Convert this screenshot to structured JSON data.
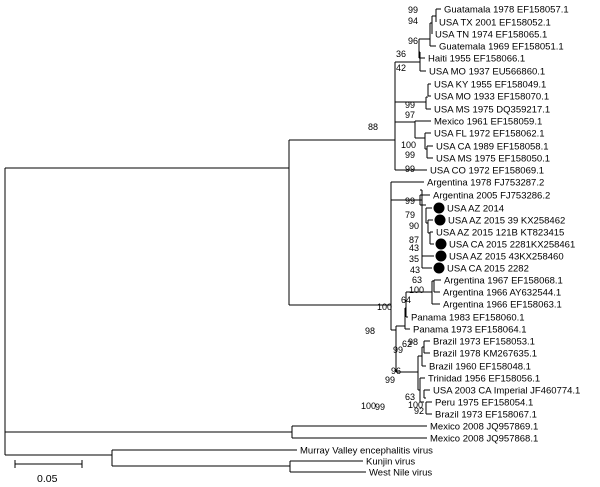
{
  "tree": {
    "leaves": [
      {
        "key": "gua1978",
        "label": "Guatamala 1978 EF158057.1"
      },
      {
        "key": "txUSA2001",
        "label": "USA TX 2001 EF158052.1"
      },
      {
        "key": "tnUSA1974",
        "label": "USA TN 1974 EF158065.1"
      },
      {
        "key": "gua1969",
        "label": "Guatemala 1969 EF158051.1"
      },
      {
        "key": "hai1955",
        "label": "Haiti 1955 EF158066.1"
      },
      {
        "key": "mo1937",
        "label": "USA MO 1937 EU566860.1"
      },
      {
        "key": "ky1955",
        "label": "USA KY 1955 EF158049.1"
      },
      {
        "key": "mo1933",
        "label": "USA MO 1933 EF158070.1"
      },
      {
        "key": "ms1975a",
        "label": "USA MS 1975 DQ359217.1"
      },
      {
        "key": "mex1961",
        "label": "Mexico 1961 EF158059.1"
      },
      {
        "key": "fl1972",
        "label": "USA FL 1972 EF158062.1"
      },
      {
        "key": "ca1989",
        "label": "USA CA 1989 EF158058.1"
      },
      {
        "key": "ms1975b",
        "label": "USA MS 1975 EF158050.1"
      },
      {
        "key": "co1972",
        "label": "USA CO 1972 EF158069.1"
      },
      {
        "key": "arg1978",
        "label": "Argentina 1978 FJ753287.2"
      },
      {
        "key": "arg2005",
        "label": "Argentina 2005 FJ753286.2"
      },
      {
        "key": "az2014",
        "label": "USA AZ 2014",
        "marked": true
      },
      {
        "key": "az2015_39",
        "label": "USA AZ 2015 39 KX258462",
        "marked": true
      },
      {
        "key": "az2015_121",
        "label": "USA AZ 2015 121B KT823415",
        "marked": false
      },
      {
        "key": "ca2015_228",
        "label": "USA CA 2015 2281KX258461",
        "marked": true
      },
      {
        "key": "az2015_43",
        "label": "USA AZ 2015 43KX258460",
        "marked": true
      },
      {
        "key": "ca2015_2282",
        "label": "USA CA 2015 2282",
        "marked": true
      },
      {
        "key": "arg1967",
        "label": "Argentina 1967 EF158068.1"
      },
      {
        "key": "arg1966a",
        "label": "Argentina 1966 AY632544.1"
      },
      {
        "key": "arg1966b",
        "label": "Argentina 1966 EF158063.1"
      },
      {
        "key": "pan1983",
        "label": "Panama 1983 EF158060.1"
      },
      {
        "key": "pan1973",
        "label": "Panama 1973 EF158064.1"
      },
      {
        "key": "bra1973a",
        "label": "Brazil 1973 EF158053.1"
      },
      {
        "key": "bra1978",
        "label": "Brazil 1978 KM267635.1"
      },
      {
        "key": "bra1960",
        "label": "Brazil 1960 EF158048.1"
      },
      {
        "key": "tri1956",
        "label": "Trinidad 1956 EF158056.1"
      },
      {
        "key": "ca2003",
        "label": "USA 2003 CA Imperial JF460774.1"
      },
      {
        "key": "per1975",
        "label": "Peru 1975 EF158054.1"
      },
      {
        "key": "bra1973b",
        "label": "Brazil 1973 EF158067.1"
      },
      {
        "key": "mex2008a",
        "label": "Mexico 2008 JQ957869.1"
      },
      {
        "key": "mex2008b",
        "label": "Mexico 2008 JQ957868.1"
      },
      {
        "key": "mve",
        "label": "Murray Valley encephalitis virus"
      },
      {
        "key": "kunjin",
        "label": "Kunjin virus"
      },
      {
        "key": "wnv",
        "label": "West Nile virus"
      }
    ],
    "support_values": [
      "99",
      "94",
      "96",
      "36",
      "42",
      "99",
      "97",
      "100",
      "99",
      "99",
      "88",
      "90",
      "79",
      "99",
      "87",
      "43",
      "35",
      "43",
      "63",
      "100",
      "64",
      "62",
      "98",
      "99",
      "96",
      "99",
      "63",
      "100",
      "92",
      "98",
      "100",
      "100",
      "99"
    ],
    "scale_bar": {
      "label": "0.05",
      "value": 0.05
    }
  }
}
